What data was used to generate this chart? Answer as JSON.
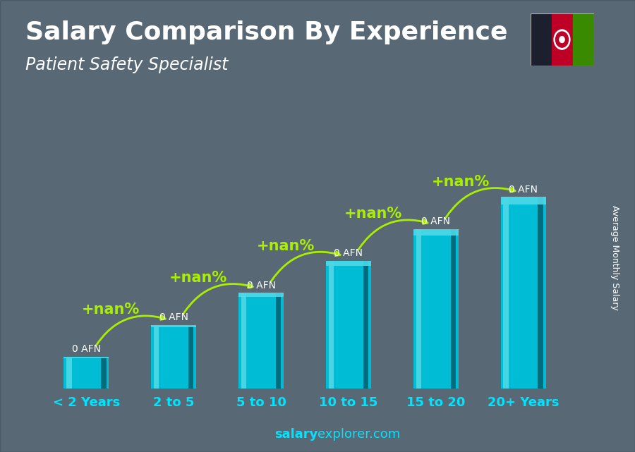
{
  "title": "Salary Comparison By Experience",
  "subtitle": "Patient Safety Specialist",
  "categories": [
    "< 2 Years",
    "2 to 5",
    "5 to 10",
    "10 to 15",
    "15 to 20",
    "20+ Years"
  ],
  "values": [
    1,
    2,
    3,
    4,
    5,
    6
  ],
  "bar_label": "0 AFN",
  "pct_label": "+nan%",
  "ylabel": "Average Monthly Salary",
  "footer": "explorer.com",
  "footer_bold": "salary",
  "footer_normal": "explorer.com",
  "bar_color_main": "#00bcd4",
  "bar_color_light": "#4dd8e8",
  "bar_color_dark": "#0097a7",
  "bar_color_side": "#006070",
  "arrow_color": "#aaee00",
  "text_color_white": "#ffffff",
  "text_color_cyan": "#00e5ff",
  "text_color_green": "#aaee00",
  "bg_color": "#5a6e7a",
  "flag_black": "#1c1f2e",
  "flag_red": "#be0027",
  "flag_green": "#3a8a00",
  "title_fontsize": 26,
  "subtitle_fontsize": 17,
  "bar_label_fontsize": 10,
  "pct_fontsize": 15,
  "xlabel_fontsize": 13,
  "ylabel_fontsize": 9,
  "footer_fontsize": 13
}
